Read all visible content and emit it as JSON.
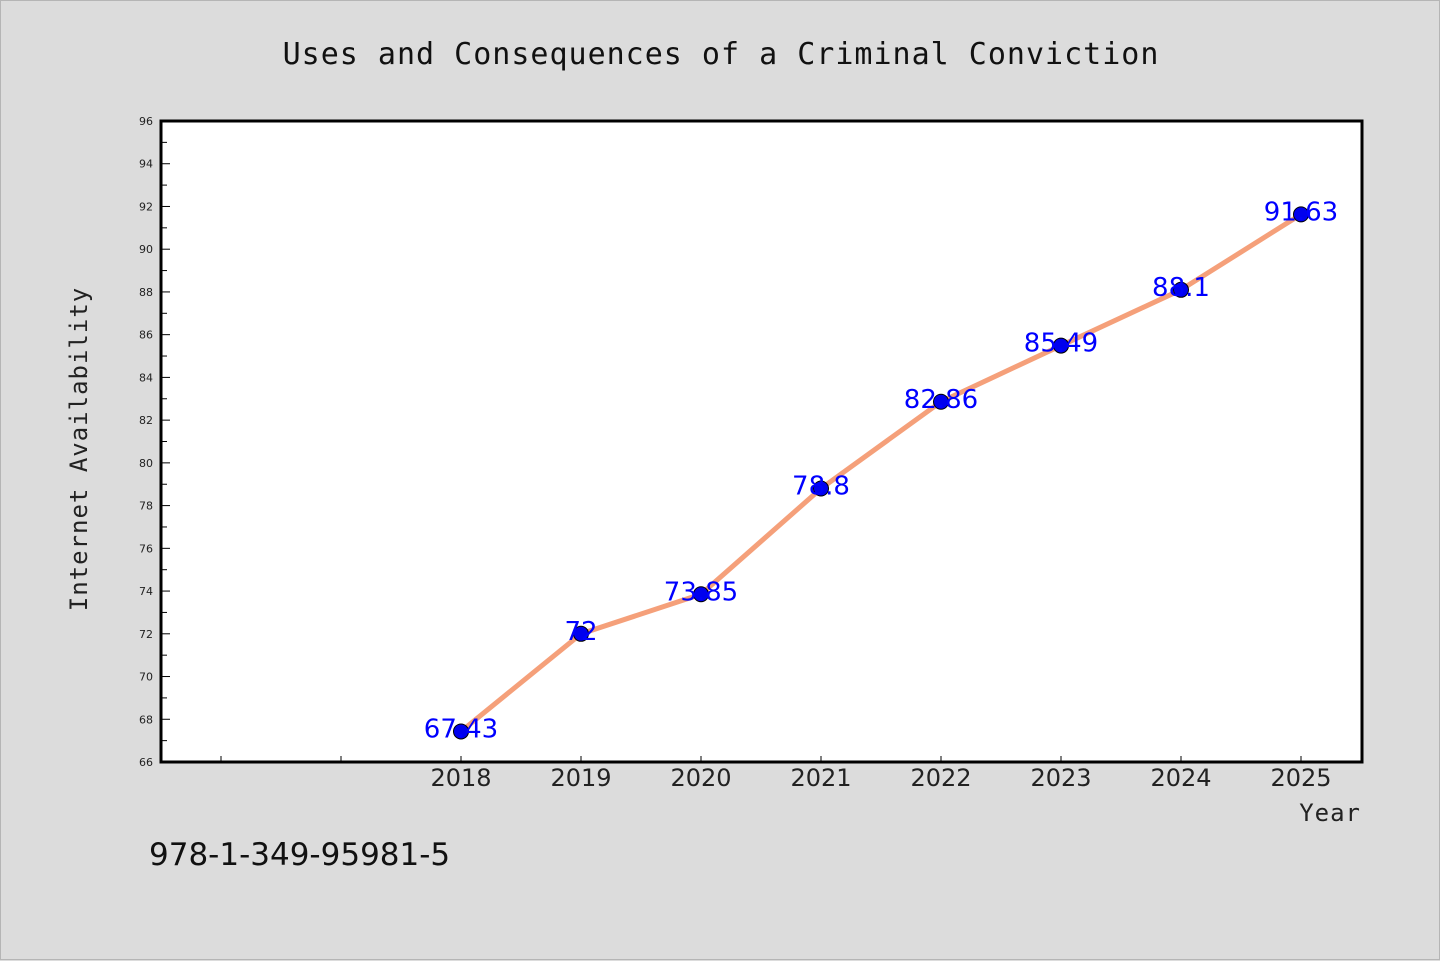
{
  "chart_data": {
    "type": "line",
    "title": "Uses and Consequences of a Criminal Conviction",
    "xlabel": "Year",
    "ylabel": "Internet Availability",
    "categories": [
      "2018",
      "2019",
      "2020",
      "2021",
      "2022",
      "2023",
      "2024",
      "2025"
    ],
    "series": [
      {
        "values": [
          67.43,
          72,
          73.85,
          78.8,
          82.86,
          85.49,
          88.1,
          91.63
        ],
        "labels": [
          "67.43",
          "72",
          "73.85",
          "78.8",
          "82.86",
          "85.49",
          "88.1",
          "91.63"
        ]
      }
    ],
    "ylim": [
      66,
      96
    ],
    "yticks": [
      66,
      68,
      70,
      72,
      74,
      76,
      78,
      80,
      82,
      84,
      86,
      88,
      90,
      92,
      94,
      96
    ],
    "grid": false,
    "legend": "none",
    "colors": {
      "line": "#f5a07a",
      "marker": "#0000ee",
      "data_label": "#0000ff",
      "background": "#dcdcdc",
      "plot_background": "#ffffff"
    }
  },
  "footnote": "978-1-349-95981-5"
}
